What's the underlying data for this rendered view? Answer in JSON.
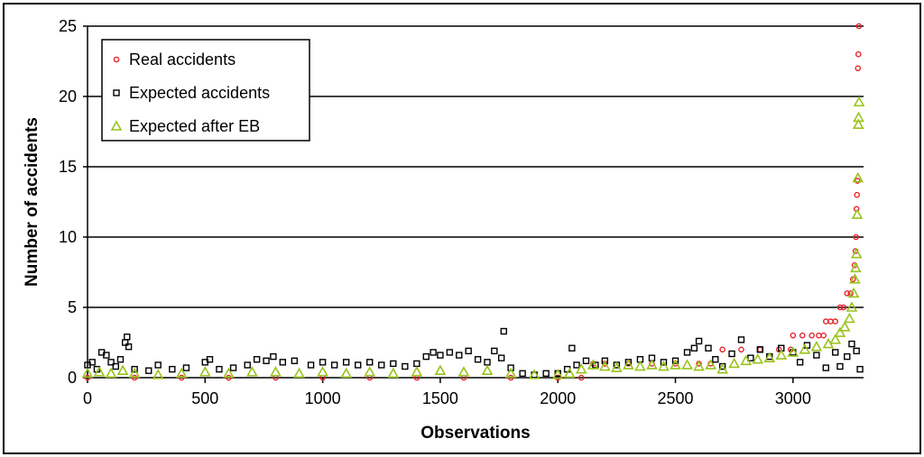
{
  "chart_data": {
    "type": "scatter",
    "xlabel": "Observations",
    "ylabel": "Number of accidents",
    "xlim": [
      0,
      3300
    ],
    "ylim": [
      0,
      25
    ],
    "xticks": [
      0,
      500,
      1000,
      1500,
      2000,
      2500,
      3000
    ],
    "yticks": [
      0,
      5,
      10,
      15,
      20,
      25
    ],
    "grid": "horizontal",
    "legend_position": "top-left",
    "series": [
      {
        "name": "Real accidents",
        "marker": "circle",
        "color": "#e8242b",
        "points": [
          [
            0,
            0
          ],
          [
            200,
            0
          ],
          [
            400,
            0
          ],
          [
            600,
            0
          ],
          [
            800,
            0
          ],
          [
            1000,
            0
          ],
          [
            1200,
            0
          ],
          [
            1400,
            0
          ],
          [
            1600,
            0
          ],
          [
            1800,
            0
          ],
          [
            2000,
            0
          ],
          [
            2100,
            0
          ],
          [
            2150,
            1
          ],
          [
            2200,
            1
          ],
          [
            2300,
            1
          ],
          [
            2400,
            1
          ],
          [
            2500,
            1
          ],
          [
            2600,
            1
          ],
          [
            2650,
            1
          ],
          [
            2700,
            2
          ],
          [
            2780,
            2
          ],
          [
            2860,
            2
          ],
          [
            2940,
            2
          ],
          [
            2990,
            2
          ],
          [
            3000,
            3
          ],
          [
            3040,
            3
          ],
          [
            3080,
            3
          ],
          [
            3110,
            3
          ],
          [
            3130,
            3
          ],
          [
            3140,
            4
          ],
          [
            3160,
            4
          ],
          [
            3180,
            4
          ],
          [
            3200,
            5
          ],
          [
            3215,
            5
          ],
          [
            3230,
            6
          ],
          [
            3245,
            6
          ],
          [
            3255,
            7
          ],
          [
            3262,
            8
          ],
          [
            3266,
            9
          ],
          [
            3268,
            10
          ],
          [
            3270,
            12
          ],
          [
            3272,
            13
          ],
          [
            3274,
            14
          ],
          [
            3276,
            22
          ],
          [
            3278,
            23
          ],
          [
            3280,
            25
          ]
        ]
      },
      {
        "name": "Expected accidents",
        "marker": "square",
        "color": "#000000",
        "points": [
          [
            0,
            0.9
          ],
          [
            20,
            1.1
          ],
          [
            40,
            0.6
          ],
          [
            60,
            1.8
          ],
          [
            80,
            1.6
          ],
          [
            100,
            1.1
          ],
          [
            120,
            0.8
          ],
          [
            140,
            1.3
          ],
          [
            160,
            2.5
          ],
          [
            168,
            2.9
          ],
          [
            175,
            2.2
          ],
          [
            200,
            0.6
          ],
          [
            260,
            0.5
          ],
          [
            300,
            0.9
          ],
          [
            360,
            0.6
          ],
          [
            420,
            0.7
          ],
          [
            500,
            1.1
          ],
          [
            520,
            1.3
          ],
          [
            560,
            0.6
          ],
          [
            620,
            0.7
          ],
          [
            680,
            0.9
          ],
          [
            720,
            1.3
          ],
          [
            760,
            1.2
          ],
          [
            790,
            1.5
          ],
          [
            830,
            1.1
          ],
          [
            880,
            1.2
          ],
          [
            950,
            0.9
          ],
          [
            1000,
            1.1
          ],
          [
            1050,
            0.9
          ],
          [
            1100,
            1.1
          ],
          [
            1150,
            0.9
          ],
          [
            1200,
            1.1
          ],
          [
            1250,
            0.9
          ],
          [
            1300,
            1.0
          ],
          [
            1350,
            0.8
          ],
          [
            1400,
            1.0
          ],
          [
            1440,
            1.5
          ],
          [
            1470,
            1.8
          ],
          [
            1500,
            1.6
          ],
          [
            1540,
            1.8
          ],
          [
            1580,
            1.6
          ],
          [
            1620,
            1.9
          ],
          [
            1660,
            1.3
          ],
          [
            1700,
            1.1
          ],
          [
            1730,
            1.9
          ],
          [
            1760,
            1.4
          ],
          [
            1770,
            3.3
          ],
          [
            1800,
            0.7
          ],
          [
            1850,
            0.3
          ],
          [
            1900,
            0.2
          ],
          [
            1950,
            0.3
          ],
          [
            2000,
            0.3
          ],
          [
            2040,
            0.6
          ],
          [
            2060,
            2.1
          ],
          [
            2080,
            0.9
          ],
          [
            2120,
            1.2
          ],
          [
            2160,
            0.9
          ],
          [
            2200,
            1.2
          ],
          [
            2250,
            0.9
          ],
          [
            2300,
            1.1
          ],
          [
            2350,
            1.3
          ],
          [
            2400,
            1.4
          ],
          [
            2450,
            1.1
          ],
          [
            2500,
            1.2
          ],
          [
            2550,
            1.8
          ],
          [
            2580,
            2.1
          ],
          [
            2600,
            2.6
          ],
          [
            2640,
            2.1
          ],
          [
            2670,
            1.3
          ],
          [
            2700,
            0.8
          ],
          [
            2740,
            1.7
          ],
          [
            2780,
            2.7
          ],
          [
            2820,
            1.4
          ],
          [
            2860,
            2.0
          ],
          [
            2900,
            1.5
          ],
          [
            2950,
            2.1
          ],
          [
            3000,
            1.8
          ],
          [
            3030,
            1.1
          ],
          [
            3060,
            2.3
          ],
          [
            3100,
            1.6
          ],
          [
            3140,
            0.7
          ],
          [
            3180,
            1.8
          ],
          [
            3200,
            0.8
          ],
          [
            3230,
            1.5
          ],
          [
            3250,
            2.4
          ],
          [
            3270,
            1.9
          ],
          [
            3285,
            0.6
          ]
        ]
      },
      {
        "name": "Expected after EB",
        "marker": "triangle",
        "color": "#9ac31c",
        "points": [
          [
            0,
            0.3
          ],
          [
            50,
            0.4
          ],
          [
            100,
            0.3
          ],
          [
            150,
            0.5
          ],
          [
            200,
            0.3
          ],
          [
            300,
            0.2
          ],
          [
            400,
            0.3
          ],
          [
            500,
            0.4
          ],
          [
            600,
            0.3
          ],
          [
            700,
            0.4
          ],
          [
            800,
            0.4
          ],
          [
            900,
            0.3
          ],
          [
            1000,
            0.4
          ],
          [
            1100,
            0.3
          ],
          [
            1200,
            0.4
          ],
          [
            1300,
            0.3
          ],
          [
            1400,
            0.4
          ],
          [
            1500,
            0.5
          ],
          [
            1600,
            0.4
          ],
          [
            1700,
            0.5
          ],
          [
            1800,
            0.3
          ],
          [
            1900,
            0.2
          ],
          [
            2000,
            0.2
          ],
          [
            2050,
            0.3
          ],
          [
            2100,
            0.6
          ],
          [
            2150,
            0.9
          ],
          [
            2200,
            0.8
          ],
          [
            2250,
            0.7
          ],
          [
            2300,
            0.9
          ],
          [
            2350,
            0.8
          ],
          [
            2400,
            0.9
          ],
          [
            2450,
            0.8
          ],
          [
            2500,
            0.9
          ],
          [
            2550,
            0.9
          ],
          [
            2600,
            0.8
          ],
          [
            2650,
            0.9
          ],
          [
            2700,
            0.6
          ],
          [
            2750,
            1.0
          ],
          [
            2800,
            1.2
          ],
          [
            2850,
            1.3
          ],
          [
            2900,
            1.4
          ],
          [
            2950,
            1.6
          ],
          [
            3000,
            1.8
          ],
          [
            3050,
            2.0
          ],
          [
            3100,
            2.2
          ],
          [
            3150,
            2.4
          ],
          [
            3180,
            2.7
          ],
          [
            3200,
            3.2
          ],
          [
            3220,
            3.6
          ],
          [
            3240,
            4.2
          ],
          [
            3250,
            5.0
          ],
          [
            3258,
            6.0
          ],
          [
            3263,
            7.0
          ],
          [
            3267,
            7.8
          ],
          [
            3270,
            8.8
          ],
          [
            3273,
            11.6
          ],
          [
            3276,
            14.2
          ],
          [
            3278,
            18.0
          ],
          [
            3279,
            18.5
          ],
          [
            3281,
            19.6
          ]
        ]
      }
    ]
  }
}
